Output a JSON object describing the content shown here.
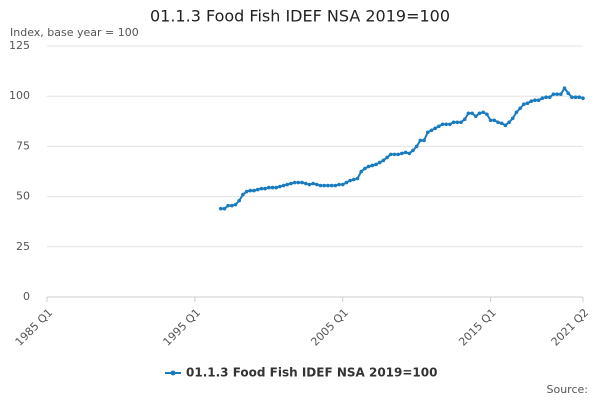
{
  "chart_data": {
    "type": "line",
    "title": "01.1.3 Food Fish IDEF NSA 2019=100",
    "y_label": "Index, base year = 100",
    "source": "Source:",
    "categories": [
      "1985 Q1",
      null,
      null,
      null,
      null,
      null,
      null,
      null,
      null,
      null,
      null,
      null,
      null,
      null,
      null,
      null,
      null,
      null,
      null,
      null,
      null,
      null,
      null,
      null,
      null,
      null,
      null,
      null,
      null,
      null,
      null,
      null,
      null,
      null,
      null,
      null,
      null,
      null,
      null,
      null,
      "1995 Q1",
      null,
      null,
      null,
      null,
      null,
      null,
      null,
      null,
      null,
      null,
      null,
      null,
      null,
      null,
      null,
      null,
      null,
      null,
      null,
      null,
      null,
      null,
      null,
      null,
      null,
      null,
      null,
      null,
      null,
      null,
      null,
      null,
      null,
      null,
      null,
      null,
      null,
      null,
      null,
      "2005 Q1",
      null,
      null,
      null,
      null,
      null,
      null,
      null,
      null,
      null,
      null,
      null,
      null,
      null,
      null,
      null,
      null,
      null,
      null,
      null,
      null,
      null,
      null,
      null,
      null,
      null,
      null,
      null,
      null,
      null,
      null,
      null,
      null,
      null,
      null,
      null,
      null,
      null,
      null,
      null,
      "2015 Q1",
      null,
      null,
      null,
      null,
      null,
      null,
      null,
      null,
      null,
      null,
      null,
      null,
      null,
      null,
      null,
      null,
      null,
      null,
      null,
      null,
      null,
      null,
      null,
      null,
      "2021 Q2"
    ],
    "series": [
      {
        "name": "01.1.3 Food Fish IDEF NSA 2019=100",
        "color": "#1a7cbf",
        "values": [
          null,
          null,
          null,
          null,
          null,
          null,
          null,
          null,
          null,
          null,
          null,
          null,
          null,
          null,
          null,
          null,
          null,
          null,
          null,
          null,
          null,
          null,
          null,
          null,
          null,
          null,
          null,
          null,
          null,
          null,
          null,
          null,
          null,
          null,
          null,
          null,
          null,
          null,
          null,
          null,
          null,
          null,
          null,
          null,
          null,
          null,
          null,
          44,
          44,
          45.5,
          45.5,
          46,
          48,
          51,
          52.5,
          53,
          53,
          53.5,
          54,
          54,
          54.5,
          54.5,
          54.5,
          55,
          55.5,
          56,
          56.5,
          57,
          57,
          57,
          56.5,
          56,
          56.5,
          56,
          55.5,
          55.5,
          55.5,
          55.5,
          55.5,
          56,
          56,
          57,
          58,
          58.5,
          59,
          62.5,
          64,
          65,
          65.5,
          66,
          67,
          68,
          69.5,
          71,
          71,
          71,
          71.5,
          72,
          71.5,
          73,
          75,
          78,
          78,
          82,
          83,
          84,
          85,
          86,
          86,
          86,
          87,
          87,
          87,
          88.5,
          91.5,
          91.5,
          90,
          91.5,
          92,
          91,
          88,
          88,
          87,
          86.5,
          85.5,
          87,
          89,
          92,
          94,
          96,
          96.5,
          97.5,
          98,
          98,
          99,
          99.5,
          99.5,
          101,
          101,
          101,
          104,
          101.5,
          99.5,
          99.5,
          99.5,
          99
        ]
      }
    ],
    "ylim": [
      0,
      125
    ],
    "yticks": [
      0,
      25,
      50,
      75,
      100,
      125
    ],
    "grid": true
  }
}
